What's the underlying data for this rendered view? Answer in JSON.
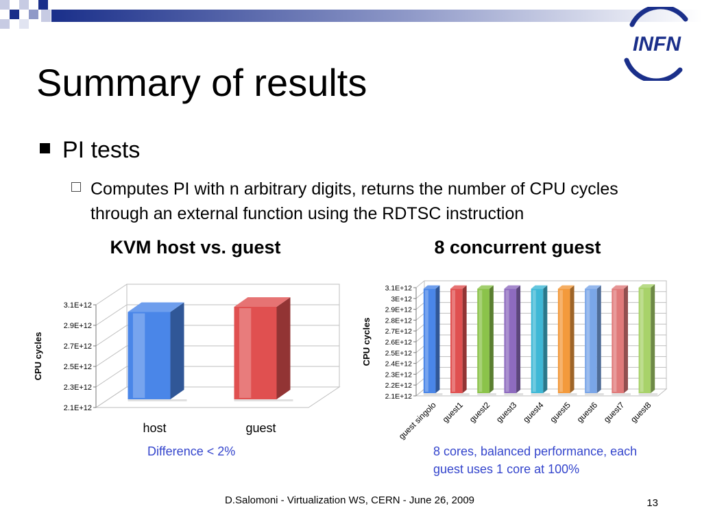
{
  "slide": {
    "title": "Summary of results",
    "bullet": "PI tests",
    "sub_bullet": "Computes PI with n arbitrary digits, returns the number of CPU cycles through an external function using the RDTSC instruction",
    "logo_text": "INFN",
    "footer": "D.Salomoni - Virtualization WS, CERN - June 26, 2009",
    "page_number": "13",
    "note_left": "Difference < 2%",
    "note_right_1": "8 cores, balanced performance, each",
    "note_right_2": "guest uses 1 core at 100%"
  },
  "colors": {
    "accent": "#1a2f8a",
    "note_text": "#3344cc"
  },
  "chart_data": [
    {
      "type": "bar",
      "title": "KVM host vs. guest",
      "ylabel": "CPU cycles",
      "xlabel": "",
      "categories": [
        "host",
        "guest"
      ],
      "values": [
        3030000000000.0,
        3080000000000.0
      ],
      "colors": [
        "#4a86e8",
        "#e05050"
      ],
      "ylim": [
        2100000000000.0,
        3100000000000.0
      ],
      "yticks": [
        2100000000000.0,
        2300000000000.0,
        2500000000000.0,
        2700000000000.0,
        2900000000000.0,
        3100000000000.0
      ],
      "ytick_labels": [
        "2.1E+12",
        "2.3E+12",
        "2.5E+12",
        "2.7E+12",
        "2.9E+12",
        "3.1E+12"
      ],
      "grid": true,
      "legend": "none"
    },
    {
      "type": "bar",
      "title": "8 concurrent guest",
      "ylabel": "CPU cycles",
      "xlabel": "",
      "categories": [
        "guest singolo",
        "guest1",
        "guest2",
        "guest3",
        "guest4",
        "guest5",
        "guest6",
        "guest7",
        "guest8"
      ],
      "values": [
        3090000000000.0,
        3090000000000.0,
        3090000000000.0,
        3090000000000.0,
        3090000000000.0,
        3090000000000.0,
        3090000000000.0,
        3090000000000.0,
        3100000000000.0
      ],
      "colors": [
        "#4a86e8",
        "#e05050",
        "#8bc34a",
        "#8e6bbf",
        "#3fb8d6",
        "#f39a3c",
        "#7aa6e8",
        "#e07a7a",
        "#a8d26a"
      ],
      "ylim": [
        2100000000000.0,
        3100000000000.0
      ],
      "yticks": [
        2100000000000.0,
        2200000000000.0,
        2300000000000.0,
        2400000000000.0,
        2500000000000.0,
        2600000000000.0,
        2700000000000.0,
        2800000000000.0,
        2900000000000.0,
        3000000000000.0,
        3100000000000.0
      ],
      "ytick_labels": [
        "2.1E+12",
        "2.2E+12",
        "2.3E+12",
        "2.4E+12",
        "2.5E+12",
        "2.6E+12",
        "2.7E+12",
        "2.8E+12",
        "2.9E+12",
        "3E+12",
        "3.1E+12"
      ],
      "grid": true,
      "legend": "none"
    }
  ]
}
